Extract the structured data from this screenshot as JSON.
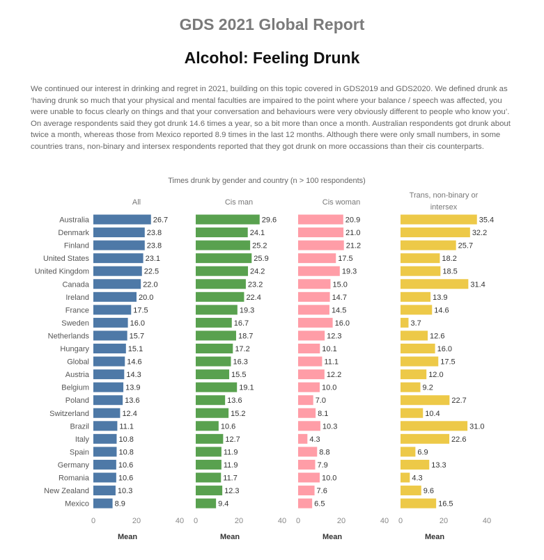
{
  "header": {
    "report_title": "GDS 2021 Global Report",
    "page_title": "Alcohol: Feeling Drunk"
  },
  "intro": {
    "text": "We continued our interest in drinking and regret in 2021, building on this topic covered in GDS2019 and GDS2020. We defined drunk as ‘having drunk so much that your physical and mental faculties are impaired to the point where your balance / speech was affected, you were unable to focus clearly on things and that your conversation and behaviours were very obviously different to people who know you’. On average respondents said they got drunk 14.6 times a year, so a bit more than once a month. Australian respondents got drunk about twice a month, whereas those from Mexico reported 8.9 times in the last 12 months. Although there were only small numbers, in some countries trans, non-binary and intersex respondents reported that they got drunk on more occassions than their cis counterparts."
  },
  "chart_data": {
    "type": "bar",
    "orientation": "horizontal",
    "title": "Times drunk by gender and country (n > 100 respondents)",
    "xlabel": "Mean",
    "xlim": [
      0,
      40
    ],
    "xticks": [
      0,
      20,
      40
    ],
    "grid": false,
    "categories": [
      "Australia",
      "Denmark",
      "Finland",
      "United States",
      "United Kingdom",
      "Canada",
      "Ireland",
      "France",
      "Sweden",
      "Netherlands",
      "Hungary",
      "Global",
      "Austria",
      "Belgium",
      "Poland",
      "Switzerland",
      "Brazil",
      "Italy",
      "Spain",
      "Germany",
      "Romania",
      "New Zealand",
      "Mexico"
    ],
    "series": [
      {
        "name": "All",
        "color": "#4e79a7",
        "values": [
          26.7,
          23.8,
          23.8,
          23.1,
          22.5,
          22.0,
          20.0,
          17.5,
          16.0,
          15.7,
          15.1,
          14.6,
          14.3,
          13.9,
          13.6,
          12.4,
          11.1,
          10.8,
          10.8,
          10.6,
          10.6,
          10.3,
          8.9
        ]
      },
      {
        "name": "Cis man",
        "color": "#59a14f",
        "values": [
          29.6,
          24.1,
          25.2,
          25.9,
          24.2,
          23.2,
          22.4,
          19.3,
          16.7,
          18.7,
          17.2,
          16.3,
          15.5,
          19.1,
          13.6,
          15.2,
          10.6,
          12.7,
          11.9,
          11.9,
          11.7,
          12.3,
          9.4
        ]
      },
      {
        "name": "Cis woman",
        "color": "#ff9da7",
        "values": [
          20.9,
          21.0,
          21.2,
          17.5,
          19.3,
          15.0,
          14.7,
          14.5,
          16.0,
          12.3,
          10.1,
          11.1,
          12.2,
          10.0,
          7.0,
          8.1,
          10.3,
          4.3,
          8.8,
          7.9,
          10.0,
          7.6,
          6.5
        ]
      },
      {
        "name": "Trans, non-binary or intersex",
        "name_lines": [
          "Trans, non-binary or",
          "intersex"
        ],
        "color": "#edc948",
        "values": [
          35.4,
          32.2,
          25.7,
          18.2,
          18.5,
          31.4,
          13.9,
          14.6,
          3.7,
          12.6,
          16.0,
          17.5,
          12.0,
          9.2,
          22.7,
          10.4,
          31.0,
          22.6,
          6.9,
          13.3,
          4.3,
          9.6,
          16.5
        ]
      }
    ]
  }
}
